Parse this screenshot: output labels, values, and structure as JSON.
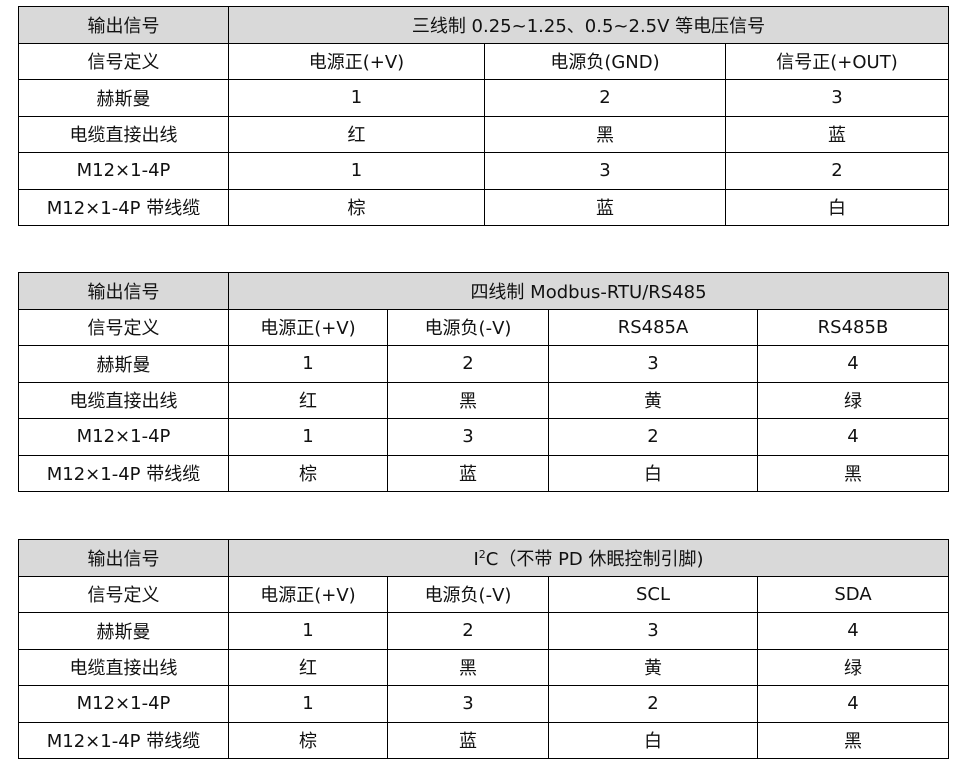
{
  "tables": [
    {
      "header": [
        "输出信号",
        "三线制 0.25~1.25、0.5~2.5V 等电压信号"
      ],
      "rows": [
        [
          "信号定义",
          "电源正(+V)",
          "电源负(GND)",
          "信号正(+OUT)"
        ],
        [
          "赫斯曼",
          "1",
          "2",
          "3"
        ],
        [
          "电缆直接出线",
          "红",
          "黑",
          "蓝"
        ],
        [
          "M12×1-4P",
          "1",
          "3",
          "2"
        ],
        [
          "M12×1-4P 带线缆",
          "棕",
          "蓝",
          "白"
        ]
      ]
    },
    {
      "header": [
        "输出信号",
        "四线制 Modbus-RTU/RS485"
      ],
      "rows": [
        [
          "信号定义",
          "电源正(+V)",
          "电源负(-V)",
          "RS485A",
          "RS485B"
        ],
        [
          "赫斯曼",
          "1",
          "2",
          "3",
          "4"
        ],
        [
          "电缆直接出线",
          "红",
          "黑",
          "黄",
          "绿"
        ],
        [
          "M12×1-4P",
          "1",
          "3",
          "2",
          "4"
        ],
        [
          "M12×1-4P 带线缆",
          "棕",
          "蓝",
          "白",
          "黑"
        ]
      ]
    },
    {
      "header": [
        "输出信号",
        "I",
        "2",
        "C（不带 PD 休眠控制引脚)"
      ],
      "rows": [
        [
          "信号定义",
          "电源正(+V)",
          "电源负(-V)",
          "SCL",
          "SDA"
        ],
        [
          "赫斯曼",
          "1",
          "2",
          "3",
          "4"
        ],
        [
          "电缆直接出线",
          "红",
          "黑",
          "黄",
          "绿"
        ],
        [
          "M12×1-4P",
          "1",
          "3",
          "2",
          "4"
        ],
        [
          "M12×1-4P 带线缆",
          "棕",
          "蓝",
          "白",
          "黑"
        ]
      ]
    }
  ]
}
